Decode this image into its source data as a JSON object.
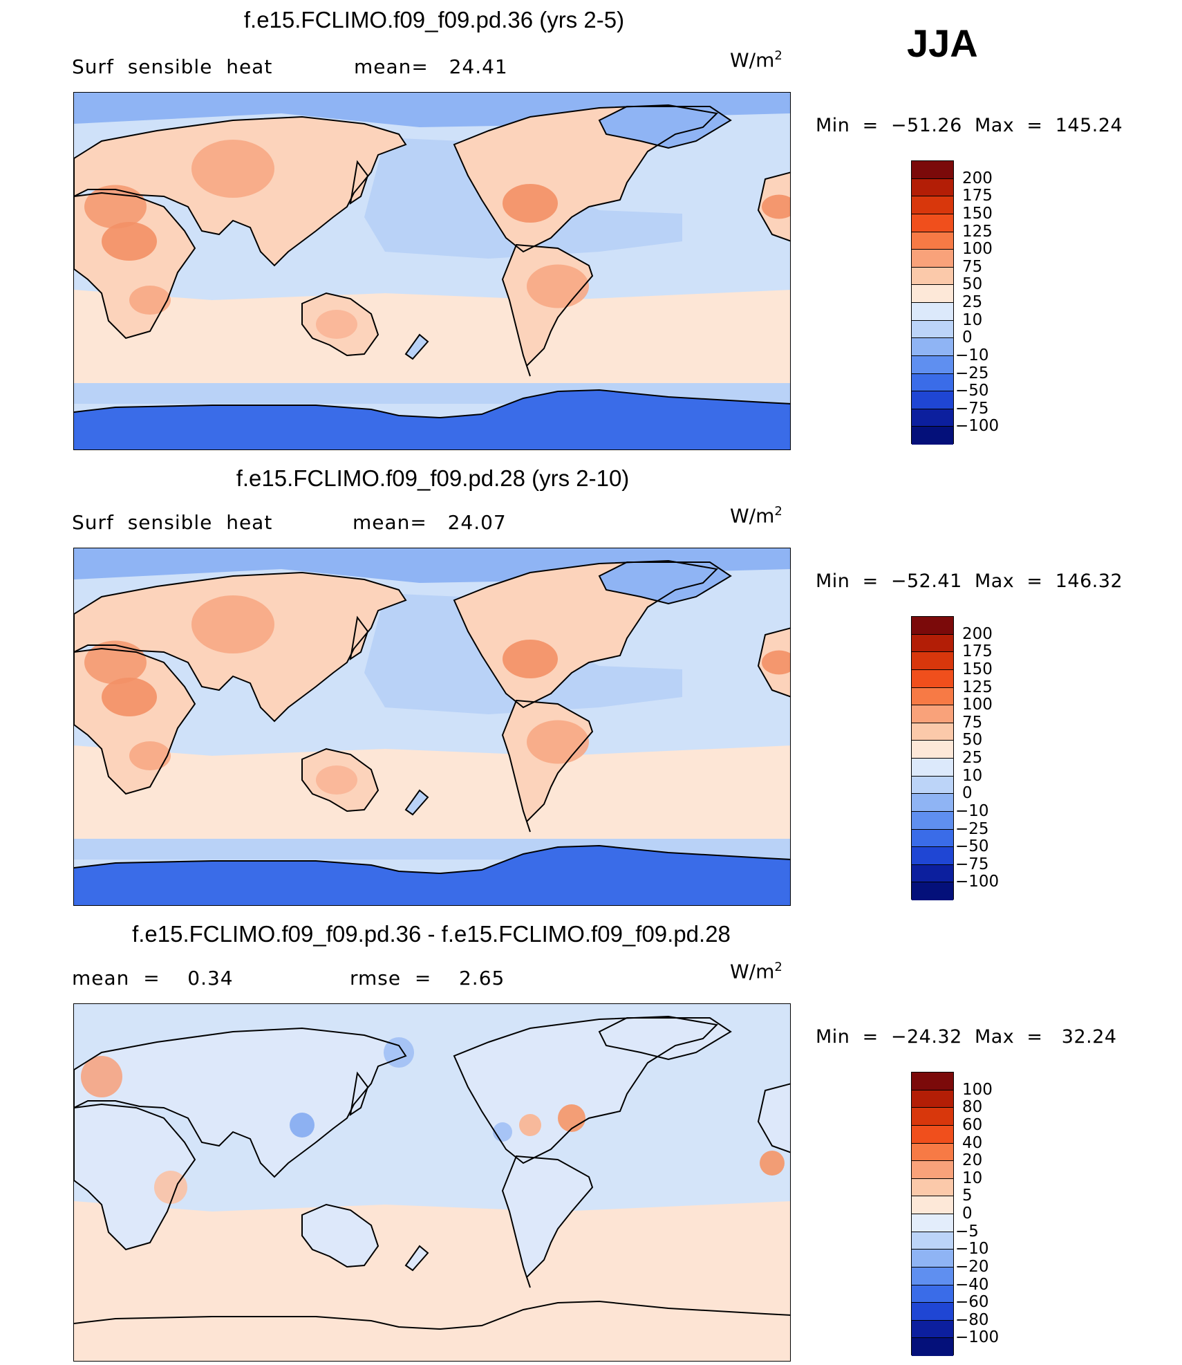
{
  "season": "JJA",
  "panels": [
    {
      "title": "f.e15.FCLIMO.f09_f09.pd.36 (yrs 2-5)",
      "left_text": "Surf  sensible  heat",
      "stat_text": "mean=   24.41",
      "units": "W/m",
      "units_sup": "2",
      "minmax": "Min  =  −51.26  Max  =  145.24",
      "levels": [
        "200",
        "175",
        "150",
        "125",
        "100",
        "75",
        "50",
        "25",
        "10",
        "0",
        "−10",
        "−25",
        "−50",
        "−75",
        "−100"
      ],
      "colors": [
        "#7b0a0a",
        "#b31e06",
        "#d8370c",
        "#f04f1c",
        "#f77a45",
        "#f9a27a",
        "#fbc9aa",
        "#fde8d8",
        "#dce9fb",
        "#bcd4f8",
        "#8fb4f4",
        "#5f8ff0",
        "#3a6ce8",
        "#1f46d4",
        "#0c1f9e",
        "#04107a"
      ]
    },
    {
      "title": "f.e15.FCLIMO.f09_f09.pd.28 (yrs 2-10)",
      "left_text": "Surf  sensible  heat",
      "stat_text": "mean=   24.07",
      "units": "W/m",
      "units_sup": "2",
      "minmax": "Min  =  −52.41  Max  =  146.32",
      "levels": [
        "200",
        "175",
        "150",
        "125",
        "100",
        "75",
        "50",
        "25",
        "10",
        "0",
        "−10",
        "−25",
        "−50",
        "−75",
        "−100"
      ],
      "colors": [
        "#7b0a0a",
        "#b31e06",
        "#d8370c",
        "#f04f1c",
        "#f77a45",
        "#f9a27a",
        "#fbc9aa",
        "#fde8d8",
        "#dce9fb",
        "#bcd4f8",
        "#8fb4f4",
        "#5f8ff0",
        "#3a6ce8",
        "#1f46d4",
        "#0c1f9e",
        "#04107a"
      ]
    },
    {
      "title": "f.e15.FCLIMO.f09_f09.pd.36 - f.e15.FCLIMO.f09_f09.pd.28",
      "left_text": "mean  =    0.34",
      "stat_text": "rmse  =    2.65",
      "units": "W/m",
      "units_sup": "2",
      "minmax": "Min  =  −24.32  Max  =   32.24",
      "levels": [
        "100",
        "80",
        "60",
        "40",
        "20",
        "10",
        "5",
        "0",
        "−5",
        "−10",
        "−20",
        "−40",
        "−60",
        "−80",
        "−100"
      ],
      "colors": [
        "#7b0a0a",
        "#b31e06",
        "#d8370c",
        "#f04f1c",
        "#f77a45",
        "#f9a27a",
        "#fbc9aa",
        "#fde8d8",
        "#e3edfb",
        "#bcd4f8",
        "#8fb4f4",
        "#5f8ff0",
        "#3a6ce8",
        "#1f46d4",
        "#0c1f9e",
        "#04107a"
      ]
    }
  ]
}
